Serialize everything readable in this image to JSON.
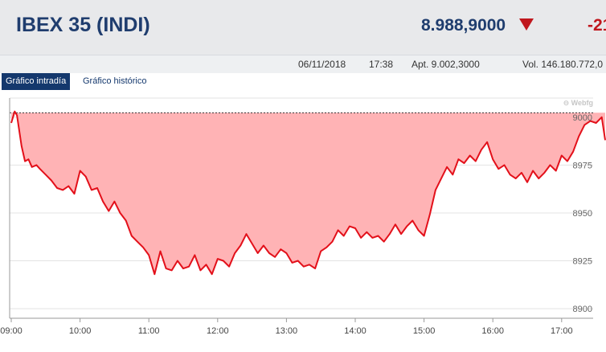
{
  "header": {
    "title": "IBEX 35 (INDI)",
    "price": "8.988,9000",
    "change": "-21",
    "down_color": "#c0171d"
  },
  "info": {
    "date": "06/11/2018",
    "time": "17:38",
    "open": "Apt. 9.002,3000",
    "volume": "Vol. 146.180.772,0"
  },
  "tabs": {
    "intraday": "Gráfico intradía",
    "historic": "Gráfico histórico"
  },
  "watermark": "⊖ Webfg",
  "chart_data": {
    "type": "area",
    "title": "",
    "xlabel": "",
    "ylabel": "",
    "x_ticks": [
      "09:00",
      "10:00",
      "11:00",
      "12:00",
      "13:00",
      "14:00",
      "15:00",
      "16:00",
      "17:00"
    ],
    "y_ticks": [
      9000,
      8975,
      8950,
      8925,
      8900
    ],
    "y_tick_labels": [
      "9000",
      "8975",
      "8950",
      "8925",
      "8900"
    ],
    "ylim": [
      8895,
      9010
    ],
    "reference_line": 9002.3,
    "line_color": "#e3101a",
    "fill_color": "#ffb3b5",
    "grid": true,
    "series": [
      {
        "x": [
          "09:00",
          "09:03",
          "09:05",
          "09:09",
          "09:12",
          "09:15",
          "09:18",
          "09:22",
          "09:25",
          "09:30",
          "09:35",
          "09:40",
          "09:45",
          "09:50",
          "09:55",
          "10:00",
          "10:05",
          "10:10",
          "10:15",
          "10:20",
          "10:25",
          "10:30",
          "10:35",
          "10:40",
          "10:45",
          "10:50",
          "10:55",
          "11:00",
          "11:05",
          "11:10",
          "11:15",
          "11:20",
          "11:25",
          "11:30",
          "11:35",
          "11:40",
          "11:45",
          "11:50",
          "11:55",
          "12:00",
          "12:05",
          "12:10",
          "12:15",
          "12:20",
          "12:25",
          "12:30",
          "12:35",
          "12:40",
          "12:45",
          "12:50",
          "12:55",
          "13:00",
          "13:05",
          "13:10",
          "13:15",
          "13:20",
          "13:25",
          "13:30",
          "13:35",
          "13:40",
          "13:45",
          "13:50",
          "13:55",
          "14:00",
          "14:05",
          "14:10",
          "14:15",
          "14:20",
          "14:25",
          "14:30",
          "14:35",
          "14:40",
          "14:45",
          "14:50",
          "14:55",
          "15:00",
          "15:05",
          "15:10",
          "15:15",
          "15:20",
          "15:25",
          "15:30",
          "15:35",
          "15:40",
          "15:45",
          "15:50",
          "15:55",
          "16:00",
          "16:05",
          "16:10",
          "16:15",
          "16:20",
          "16:25",
          "16:30",
          "16:35",
          "16:40",
          "16:45",
          "16:50",
          "16:55",
          "17:00",
          "17:05",
          "17:10",
          "17:15",
          "17:20",
          "17:25",
          "17:30",
          "17:35",
          "17:38"
        ],
        "values": [
          8997,
          9003,
          9001,
          8985,
          8977,
          8978,
          8974,
          8975,
          8973,
          8970,
          8967,
          8963,
          8962,
          8964,
          8960,
          8972,
          8969,
          8962,
          8963,
          8956,
          8951,
          8956,
          8950,
          8946,
          8938,
          8935,
          8932,
          8928,
          8918,
          8930,
          8921,
          8920,
          8925,
          8921,
          8922,
          8928,
          8920,
          8923,
          8918,
          8926,
          8925,
          8922,
          8929,
          8933,
          8939,
          8934,
          8929,
          8933,
          8929,
          8927,
          8931,
          8929,
          8924,
          8925,
          8922,
          8923,
          8921,
          8930,
          8932,
          8935,
          8941,
          8938,
          8943,
          8942,
          8937,
          8940,
          8937,
          8938,
          8935,
          8939,
          8944,
          8939,
          8943,
          8946,
          8941,
          8938,
          8949,
          8962,
          8968,
          8974,
          8970,
          8978,
          8976,
          8980,
          8977,
          8983,
          8987,
          8978,
          8973,
          8975,
          8970,
          8968,
          8971,
          8966,
          8972,
          8968,
          8971,
          8975,
          8972,
          8980,
          8977,
          8982,
          8990,
          8996,
          8998,
          8997,
          9000,
          8988
        ]
      }
    ]
  }
}
